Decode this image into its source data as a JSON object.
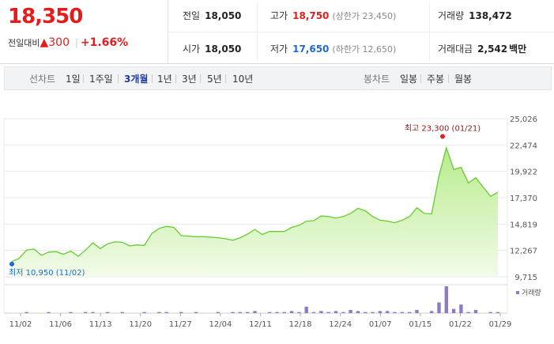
{
  "header": {
    "price": "18,350",
    "change_label": "전일대비",
    "change_arrow": "▲",
    "change_value": "300",
    "change_separator": "|",
    "change_percent": "+1.66%",
    "stats": [
      {
        "key": "전일",
        "value": "18,050",
        "value_color": "default"
      },
      {
        "key": "고가",
        "value": "18,750",
        "value_color": "red",
        "sub": "(상한가 23,450)"
      },
      {
        "key": "거래량",
        "value": "138,472",
        "value_color": "default"
      },
      {
        "key": "시가",
        "value": "18,050",
        "value_color": "default"
      },
      {
        "key": "저가",
        "value": "17,650",
        "value_color": "blue",
        "sub": "(하한가 12,650)"
      },
      {
        "key": "거래대금",
        "value": "2,542",
        "value_color": "default",
        "unit": "백만"
      }
    ]
  },
  "period_tabs": {
    "label": "선차트",
    "items": [
      "1일",
      "1주일",
      "3개월",
      "1년",
      "3년",
      "5년",
      "10년"
    ],
    "active": "3개월"
  },
  "candle_tabs": {
    "label": "봉차트",
    "items": [
      "일봉",
      "주봉",
      "월봉"
    ]
  },
  "colors": {
    "up": "#e41c1c",
    "down": "#1e6ad2",
    "line": "#66cc33",
    "area_top": "#b8ec8c",
    "area_bottom": "#f2fbea",
    "volume": "#8d7dc0",
    "tab_active": "#1e3e9a"
  },
  "chart_data": {
    "type": "area",
    "y_ticks": [
      "25,026",
      "22,474",
      "19,922",
      "17,370",
      "14,819",
      "12,267",
      "9,715"
    ],
    "ylim": [
      9715,
      25026
    ],
    "x_ticks": [
      "11/02",
      "11/06",
      "11/13",
      "11/20",
      "11/27",
      "12/04",
      "12/11",
      "12/18",
      "12/24",
      "01/07",
      "01/15",
      "01/22",
      "01/29"
    ],
    "grid": true,
    "price_series": [
      11200,
      11500,
      12300,
      12400,
      11800,
      12100,
      12150,
      11900,
      12200,
      11700,
      12300,
      13000,
      12450,
      12900,
      13100,
      13050,
      12700,
      12800,
      12750,
      13900,
      14400,
      14600,
      14500,
      13700,
      13650,
      13600,
      13600,
      13550,
      13500,
      13400,
      13250,
      13500,
      13850,
      14300,
      13800,
      14100,
      14100,
      14100,
      14500,
      14700,
      15100,
      15150,
      15600,
      15550,
      15400,
      15550,
      15850,
      16350,
      16100,
      15550,
      15200,
      15100,
      14950,
      15200,
      15550,
      16400,
      15850,
      15800,
      19500,
      22200,
      20100,
      20300,
      18800,
      19300,
      18400,
      17500,
      17900
    ],
    "high": {
      "label": "최고 23,300 (01/21)",
      "value": 23300
    },
    "low": {
      "label": "최저 10,950 (11/02)",
      "value": 10950
    },
    "volume_label": "거래량",
    "volume_series": [
      0,
      0,
      1,
      0,
      0,
      1,
      0,
      0,
      1,
      0,
      1,
      1,
      0,
      1,
      0,
      1,
      0,
      0,
      1,
      0,
      1,
      1,
      0,
      1,
      0,
      1,
      0,
      0,
      1,
      0,
      1,
      1,
      1,
      2,
      0,
      1,
      1,
      1,
      2,
      1,
      6,
      1,
      2,
      1,
      2,
      1,
      3,
      2,
      1,
      1,
      2,
      2,
      1,
      1,
      1,
      3,
      0,
      2,
      10,
      25,
      4,
      8,
      1,
      3,
      0,
      1,
      1
    ]
  }
}
